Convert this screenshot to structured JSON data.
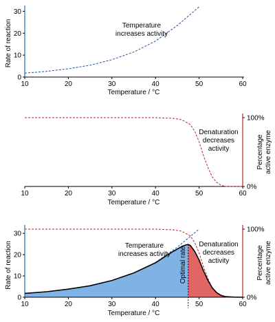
{
  "chart_data": [
    {
      "type": "line",
      "panel": "rate",
      "xlabel": "Temperature / °C",
      "ylabel": "Rate of reaction",
      "xlim": [
        10,
        60
      ],
      "ylim": [
        0,
        32
      ],
      "xticks": [
        "10",
        "20",
        "30",
        "40",
        "50",
        "60"
      ],
      "yticks": [
        "0",
        "10",
        "20",
        "30"
      ],
      "annotation": [
        "Temperature",
        "increases activity"
      ],
      "series": [
        {
          "style": "dashed",
          "color": "#1f4fa3",
          "x": [
            10,
            15,
            20,
            25,
            30,
            35,
            40,
            45,
            50
          ],
          "y": [
            1.8,
            2.6,
            3.8,
            5.4,
            7.9,
            11.4,
            16.4,
            23.5,
            32
          ]
        }
      ]
    },
    {
      "type": "line",
      "panel": "enzyme",
      "xlabel": "Temperature / °C",
      "ylabel": "Percentage active enzyme",
      "xlim": [
        10,
        60
      ],
      "ylim": [
        0,
        100
      ],
      "xticks": [
        "10",
        "20",
        "30",
        "40",
        "50",
        "60"
      ],
      "yticks": [
        "0%",
        "100%"
      ],
      "annotation": [
        "Denaturation",
        "decreases",
        "activity"
      ],
      "series": [
        {
          "style": "dashed",
          "color": "#c0202a",
          "x": [
            10,
            40,
            44,
            46,
            48,
            49,
            50,
            51,
            52,
            53,
            54,
            55,
            56,
            60
          ],
          "y": [
            100,
            100,
            99,
            97,
            90,
            80,
            65,
            45,
            28,
            14,
            6,
            2,
            0,
            0
          ]
        }
      ]
    },
    {
      "type": "area",
      "panel": "combined",
      "xlabel": "Temperature / °C",
      "ylabel_left": "Rate of reaction",
      "ylabel_right": "Percentage active enzyme",
      "xlim": [
        10,
        60
      ],
      "ylim": [
        0,
        32
      ],
      "xticks": [
        "10",
        "20",
        "30",
        "40",
        "50",
        "60"
      ],
      "yticks_left": [
        "0",
        "10",
        "20",
        "30"
      ],
      "yticks_right": [
        "0%",
        "100%"
      ],
      "annotation_left": [
        "Temperature",
        "increases activity"
      ],
      "annotation_right": [
        "Denaturation",
        "decreases",
        "activity"
      ],
      "optimal_label": "Optimal rate",
      "optimal_x": 47.5,
      "series": [
        {
          "style": "solid",
          "color": "#000000",
          "x": [
            10,
            15,
            20,
            25,
            30,
            35,
            40,
            44,
            46,
            47,
            47.5,
            48,
            49,
            50,
            51,
            52,
            53,
            54,
            55,
            56,
            58,
            60
          ],
          "y": [
            1.8,
            2.6,
            3.8,
            5.4,
            7.9,
            11.4,
            16.2,
            21.5,
            23.8,
            24.6,
            24.8,
            24.3,
            21.5,
            17.5,
            12.5,
            8.0,
            4.5,
            2.2,
            0.9,
            0.3,
            0.05,
            0
          ]
        },
        {
          "style": "dashed",
          "color": "#1f4fa3",
          "x": [
            40,
            45,
            50
          ],
          "y": [
            16.4,
            23.5,
            32
          ]
        },
        {
          "style": "dashed",
          "color": "#c0202a",
          "x": [
            10,
            40,
            44,
            46,
            48,
            49,
            50,
            51,
            52,
            53,
            54,
            55,
            56,
            60
          ],
          "y": [
            100,
            100,
            99,
            97,
            90,
            80,
            65,
            45,
            28,
            14,
            6,
            2,
            0,
            0
          ]
        }
      ],
      "fill_left_color": "#7fb2e5",
      "fill_right_color": "#e06565"
    }
  ]
}
